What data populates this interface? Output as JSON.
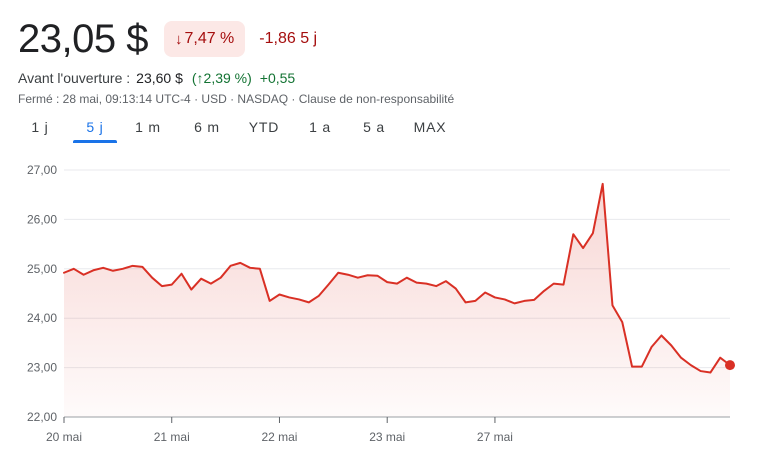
{
  "quote": {
    "price": "23,05 $",
    "change_pct_arrow": "↓",
    "change_pct": "7,47 %",
    "change_abs": "-1,86 5 j"
  },
  "premarket": {
    "label": "Avant l'ouverture :",
    "price": "23,60 $",
    "pct": "(↑2,39 %)",
    "abs": "+0,55"
  },
  "meta": "Fermé : 28 mai, 09:13:14 UTC-4 · USD · NASDAQ · Clause de non-responsabilité",
  "tabs": [
    {
      "label": "1 j",
      "active": false
    },
    {
      "label": "5 j",
      "active": true
    },
    {
      "label": "1 m",
      "active": false
    },
    {
      "label": "6 m",
      "active": false
    },
    {
      "label": "YTD",
      "active": false
    },
    {
      "label": "1 a",
      "active": false
    },
    {
      "label": "5 a",
      "active": false
    },
    {
      "label": "MAX",
      "active": false
    }
  ],
  "colors": {
    "down": "#a50e0e",
    "down_bg": "#fce8e6",
    "up": "#137333",
    "line": "#d93025",
    "active_tab": "#1a73e8",
    "grid": "#e8eaed"
  },
  "chart_data": {
    "type": "area",
    "ylim": [
      22.0,
      27.0
    ],
    "yticks": [
      "22,00",
      "23,00",
      "24,00",
      "25,00",
      "26,00",
      "27,00"
    ],
    "ytick_values": [
      22,
      23,
      24,
      25,
      26,
      27
    ],
    "xtick_labels": [
      "20 mai",
      "21 mai",
      "22 mai",
      "23 mai",
      "27 mai"
    ],
    "xtick_index": [
      0,
      11,
      22,
      33,
      44
    ],
    "grid": true,
    "values": [
      24.92,
      25.0,
      24.88,
      24.97,
      25.02,
      24.96,
      25.0,
      25.06,
      25.04,
      24.82,
      24.65,
      24.68,
      24.9,
      24.58,
      24.8,
      24.7,
      24.82,
      25.06,
      25.12,
      25.02,
      25.0,
      24.35,
      24.48,
      24.42,
      24.38,
      24.32,
      24.45,
      24.68,
      24.92,
      24.88,
      24.82,
      24.87,
      24.86,
      24.73,
      24.7,
      24.82,
      24.72,
      24.7,
      24.65,
      24.75,
      24.6,
      24.32,
      24.35,
      24.52,
      24.42,
      24.38,
      24.3,
      24.35,
      24.37,
      24.55,
      24.7,
      24.68,
      25.7,
      25.42,
      25.72,
      26.72,
      24.26,
      23.92,
      23.02,
      23.02,
      23.42,
      23.65,
      23.45,
      23.2,
      23.05,
      22.93,
      22.9,
      23.2,
      23.05
    ]
  }
}
